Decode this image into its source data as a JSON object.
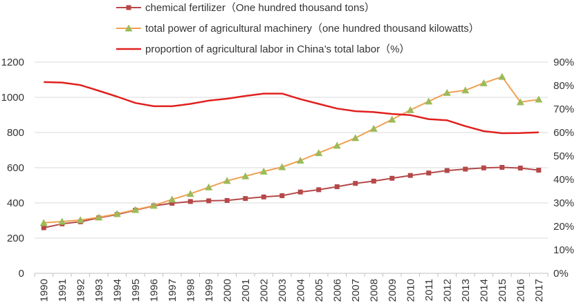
{
  "chart_data": {
    "type": "line",
    "categories": [
      "1990",
      "1991",
      "1992",
      "1993",
      "1994",
      "1995",
      "1996",
      "1997",
      "1998",
      "1999",
      "2000",
      "2001",
      "2002",
      "2003",
      "2004",
      "2005",
      "2006",
      "2007",
      "2008",
      "2009",
      "2010",
      "2011",
      "2012",
      "2013",
      "2014",
      "2015",
      "2016",
      "2017"
    ],
    "series": [
      {
        "name": "chemical fertilizer（One hundred thousand tons）",
        "axis": "left",
        "color": "#b54848",
        "marker": "square",
        "values": [
          259,
          281,
          293,
          315,
          334,
          359,
          383,
          398,
          408,
          412,
          414,
          425,
          434,
          441,
          462,
          475,
          492,
          511,
          524,
          540,
          556,
          570,
          584,
          592,
          599,
          602,
          598,
          586
        ]
      },
      {
        "name": "total power of agricultural machinery（one hundred thousand kilowatts）",
        "axis": "left",
        "color": "#f0a050",
        "marker_color": "#9bbb59",
        "marker": "triangle",
        "values": [
          287,
          294,
          303,
          318,
          338,
          361,
          385,
          420,
          452,
          489,
          526,
          552,
          579,
          604,
          641,
          684,
          726,
          769,
          822,
          874,
          928,
          977,
          1026,
          1040,
          1081,
          1117,
          973,
          988
        ]
      },
      {
        "name": "proportion of agricultural labor in China’s total labor（%）",
        "axis": "right",
        "color": "#e0201e",
        "marker": "none",
        "values": [
          81.5,
          81.3,
          80.2,
          77.8,
          75.3,
          72.6,
          71.2,
          71.2,
          72.2,
          73.6,
          74.4,
          75.6,
          76.6,
          76.6,
          74.2,
          72.2,
          70.2,
          69.1,
          68.7,
          67.9,
          67.4,
          65.7,
          65.2,
          62.7,
          60.6,
          59.7,
          59.8,
          60.1
        ]
      }
    ],
    "left_axis": {
      "ylim": [
        0,
        1200
      ],
      "ticks": [
        "0",
        "200",
        "400",
        "600",
        "800",
        "1000",
        "1200"
      ]
    },
    "right_axis": {
      "ylim": [
        0,
        90
      ],
      "ticks": [
        "0%",
        "10%",
        "20%",
        "30%",
        "40%",
        "50%",
        "60%",
        "70%",
        "80%",
        "90%"
      ]
    },
    "legend_position": "top",
    "grid": true,
    "grid_color": "#d9d9d9",
    "axis_color": "#bfbfbf"
  }
}
